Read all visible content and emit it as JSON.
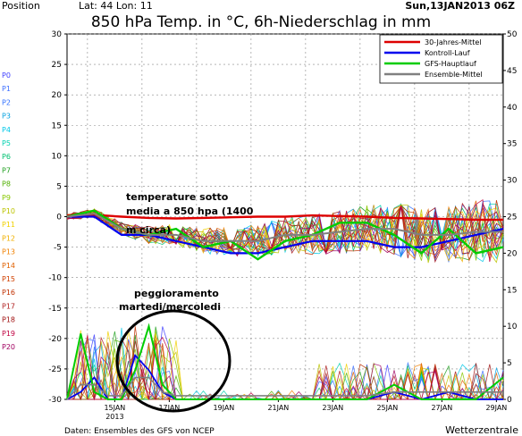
{
  "header": {
    "position_label": "Position",
    "lat_lon": "Lat: 44  Lon: 11",
    "run_date": "Sun,13JAN2013 06Z",
    "title": "850 hPa Temp. in °C, 6h-Niederschlag in mm"
  },
  "footer": {
    "source": "Daten: Ensembles des GFS von NCEP",
    "brand": "Wetterzentrale"
  },
  "annotations": {
    "temp_note_1": "temperature sotto",
    "temp_note_2": "media a 850 hpa (1400",
    "temp_note_3": "m circa)",
    "rain_note_1": "peggioramento",
    "rain_note_2": "martedi/mercoledi"
  },
  "colors": {
    "mean30": "#dd0000",
    "control": "#0000ee",
    "gfs": "#00cc00",
    "ensemble_mean": "#808080",
    "annotation_circle": "#000000"
  },
  "chart_data": {
    "type": "line",
    "x": [
      "15JAN 2013",
      "17JAN",
      "19JAN",
      "21JAN",
      "23JAN",
      "25JAN",
      "27JAN",
      "29JAN"
    ],
    "x_tick_labels": [
      "15JAN",
      "17JAN",
      "19JAN",
      "21JAN",
      "23JAN",
      "25JAN",
      "27JAN",
      "29JAN"
    ],
    "x_tick_sublabel": "2013",
    "hours_range": [
      0,
      384
    ],
    "y_left": {
      "ticks": [
        30,
        25,
        20,
        15,
        10,
        5,
        0,
        -5,
        -10,
        -15,
        -20,
        -25,
        -30
      ],
      "ylim": [
        -30,
        30
      ]
    },
    "y_right": {
      "ticks": [
        50,
        45,
        40,
        35,
        30,
        25,
        20,
        15,
        10,
        5,
        0
      ],
      "ylim": [
        0,
        50
      ]
    },
    "legend": {
      "placement": "top-right",
      "entries": [
        "30-Jahres-Mittel",
        "Kontroll-Lauf",
        "GFS-Hauptlauf",
        "Ensemble-Mittel"
      ]
    },
    "members": [
      "P0",
      "P1",
      "P2",
      "P3",
      "P4",
      "P5",
      "P6",
      "P7",
      "P8",
      "P9",
      "P10",
      "P11",
      "P12",
      "P13",
      "P14",
      "P15",
      "P16",
      "P17",
      "P18",
      "P19",
      "P20"
    ],
    "member_colors": [
      "#4040ff",
      "#4070ff",
      "#3070ff",
      "#00a0e0",
      "#00c8e8",
      "#00d0b0",
      "#00c070",
      "#20a020",
      "#50b000",
      "#88c800",
      "#bcc400",
      "#f0d000",
      "#f0b000",
      "#f08000",
      "#e06000",
      "#d04000",
      "#c03000",
      "#b02020",
      "#a01010",
      "#c00040",
      "#a00060"
    ],
    "temperature_series": [
      {
        "name": "30-Jahres-Mittel",
        "x": [
          0,
          24,
          48,
          72,
          96,
          120,
          144,
          168,
          192,
          216,
          240,
          264,
          288,
          312,
          336,
          360,
          384
        ],
        "y": [
          0.2,
          0.3,
          0.0,
          -0.2,
          -0.3,
          -0.2,
          -0.1,
          0.0,
          0.0,
          0.2,
          0.1,
          0.0,
          -0.2,
          -0.3,
          -0.4,
          -0.5,
          -0.5
        ]
      },
      {
        "name": "Kontroll-Lauf",
        "x": [
          0,
          24,
          48,
          72,
          96,
          120,
          144,
          168,
          192,
          216,
          240,
          264,
          288,
          312,
          336,
          360,
          384
        ],
        "y": [
          0,
          0,
          -3,
          -3,
          -4,
          -5,
          -6,
          -6,
          -5,
          -4,
          -4,
          -4,
          -5,
          -5,
          -4,
          -3,
          -2
        ]
      },
      {
        "name": "GFS-Hauptlauf",
        "x": [
          0,
          24,
          48,
          72,
          96,
          120,
          144,
          168,
          192,
          216,
          240,
          264,
          288,
          312,
          336,
          360,
          384
        ],
        "y": [
          0,
          1,
          -2,
          -3,
          -2,
          -5,
          -4,
          -7,
          -4,
          -3,
          -1,
          -1,
          -3,
          -6,
          -2,
          -6,
          -5
        ]
      },
      {
        "name": "Ensemble-Mittel",
        "x": [
          0,
          24,
          48,
          72,
          96,
          120,
          144,
          168,
          192,
          216,
          240,
          264,
          288,
          312,
          336,
          360,
          384
        ],
        "y": [
          0,
          0.5,
          -2,
          -3,
          -3,
          -4,
          -4,
          -4,
          -3,
          -3,
          -2.5,
          -2,
          -2,
          -3,
          -3,
          -2.5,
          -2.5
        ]
      }
    ],
    "precipitation_series": [
      {
        "name": "Kontroll-Lauf",
        "x": [
          0,
          12,
          24,
          36,
          48,
          60,
          72,
          84,
          96,
          120,
          144,
          168,
          192,
          216,
          240,
          264,
          288,
          312,
          336,
          360,
          384
        ],
        "y": [
          0,
          1,
          3,
          0,
          0,
          6,
          4,
          1,
          0,
          0,
          0,
          0,
          0,
          0,
          0,
          0,
          1,
          0,
          1,
          0,
          0
        ]
      },
      {
        "name": "GFS-Hauptlauf",
        "x": [
          0,
          12,
          24,
          36,
          48,
          60,
          72,
          84,
          96,
          120,
          144,
          168,
          192,
          216,
          240,
          264,
          288,
          312,
          336,
          360,
          384
        ],
        "y": [
          0,
          9,
          1,
          0,
          0,
          4,
          10,
          2,
          0,
          0,
          0,
          0,
          0,
          0,
          0,
          0,
          2,
          0,
          0,
          0,
          3
        ]
      },
      {
        "name": "Ensemble-Mittel",
        "x": [
          0,
          12,
          24,
          36,
          48,
          60,
          72,
          84,
          96,
          120,
          144,
          168,
          192,
          216,
          240,
          264,
          288,
          312,
          336,
          360,
          384
        ],
        "y": [
          0,
          2,
          2,
          0.5,
          0.5,
          3,
          3,
          1,
          0.5,
          0.5,
          0.5,
          0.5,
          0.5,
          0.5,
          0.5,
          0.5,
          1,
          1,
          1,
          1,
          1
        ]
      }
    ],
    "grid": true
  }
}
